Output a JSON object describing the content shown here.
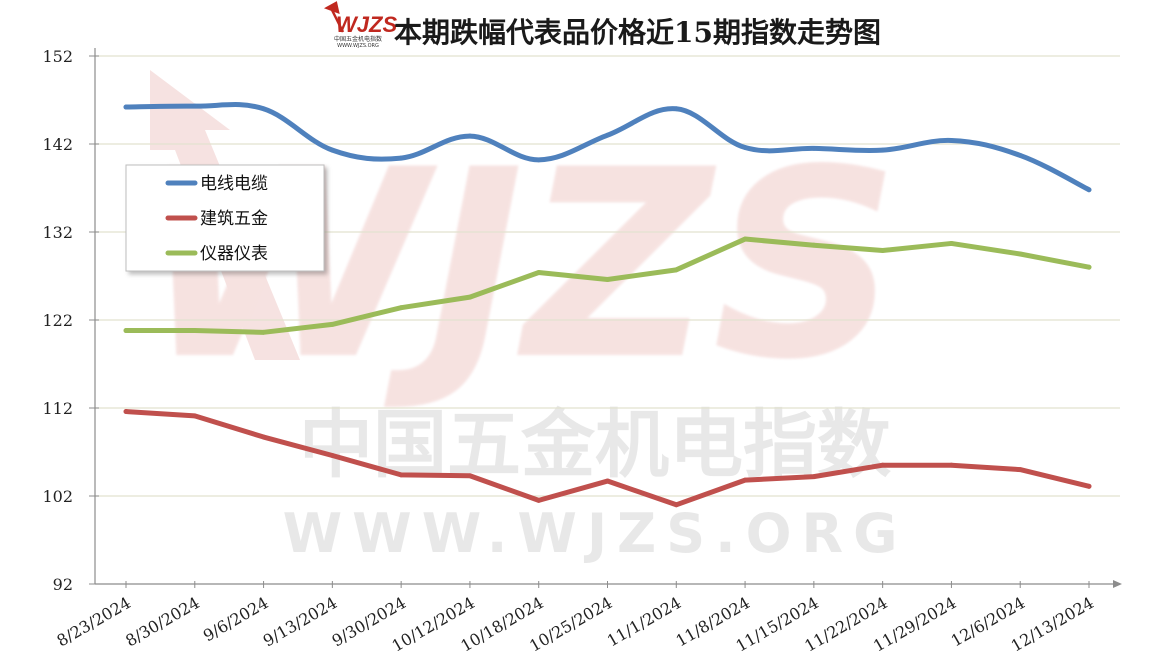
{
  "logo": {
    "mark": "WJZS",
    "subtitle": "中国五金机电指数",
    "url": "WWW.WJZS.ORG"
  },
  "watermark": {
    "mark": "WJZS",
    "name": "中国五金机电指数",
    "url": "WWW.WJZS.ORG"
  },
  "colors": {
    "电线电缆": "#4f81bd",
    "建筑五金": "#c0504d",
    "仪器仪表": "#9bbb59",
    "grid": "#e2e2cf",
    "axis": "#8c8c8c"
  },
  "chart_data": {
    "type": "line",
    "title": "本期跌幅代表品价格近15期指数走势图",
    "xlabel": "",
    "ylabel": "",
    "ylim": [
      92,
      152
    ],
    "yticks": [
      "92",
      "102",
      "112",
      "122",
      "132",
      "142",
      "152"
    ],
    "categories": [
      "8/23/2024",
      "8/30/2024",
      "9/6/2024",
      "9/13/2024",
      "9/30/2024",
      "10/12/2024",
      "10/18/2024",
      "10/25/2024",
      "11/1/2024",
      "11/8/2024",
      "11/15/2024",
      "11/22/2024",
      "11/29/2024",
      "12/6/2024",
      "12/13/2024"
    ],
    "series": [
      {
        "name": "电线电缆",
        "smooth": true,
        "values": [
          146.2,
          146.3,
          146.0,
          141.3,
          140.4,
          142.9,
          140.2,
          143.0,
          146.0,
          141.6,
          141.5,
          141.3,
          142.4,
          140.7,
          136.8
        ]
      },
      {
        "name": "建筑五金",
        "smooth": false,
        "values": [
          111.6,
          111.1,
          108.7,
          106.6,
          104.4,
          104.3,
          101.5,
          103.7,
          101.0,
          103.8,
          104.2,
          105.5,
          105.5,
          105.0,
          103.1
        ]
      },
      {
        "name": "仪器仪表",
        "smooth": false,
        "values": [
          120.8,
          120.8,
          120.6,
          121.5,
          123.4,
          124.6,
          127.4,
          126.6,
          127.7,
          131.2,
          130.5,
          129.9,
          130.7,
          129.5,
          128.0
        ]
      }
    ],
    "grid": true,
    "legend_position": "upper-left"
  }
}
